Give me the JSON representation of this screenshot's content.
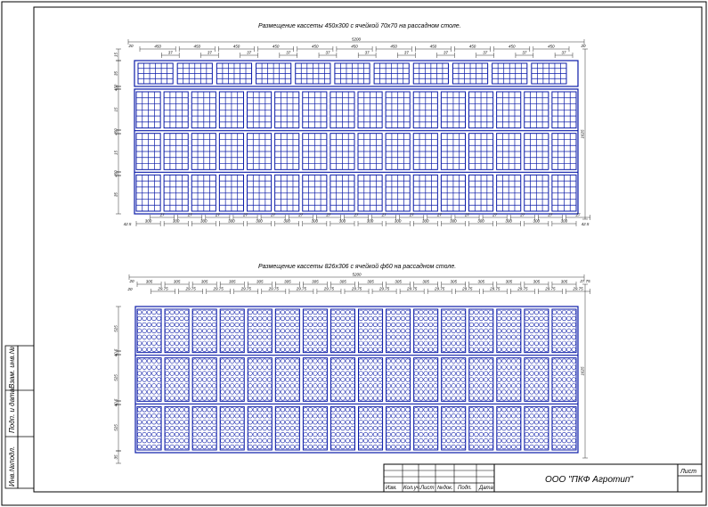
{
  "sheet": {
    "title1": "Размещение кассеты 450х300 с ячейкой 70х70 на рассадном столе.",
    "title2": "Размещение кассеты 826х306 с ячейкой ф60 на рассадном столе.",
    "company": "ООО \"ПКФ Агротип\""
  },
  "drawing1": {
    "overall_width": "5200",
    "overall_height": "1625",
    "side_margin_top": "20",
    "side_margin_bottom": "42.5",
    "cassette_width": "450",
    "cassette_height": "300",
    "spacing_top": "37",
    "spacing_bottom": "27",
    "row_height": "450",
    "row_gap": "15",
    "top_row_height": "35",
    "vertical_labels": [
      "15",
      "35",
      "450",
      "15",
      "450",
      "15",
      "450",
      "35"
    ],
    "top_row_count": 11,
    "body_cols": 16,
    "body_rows": 3
  },
  "drawing2": {
    "overall_width": "5200",
    "overall_height": "1625",
    "side_margin": "20",
    "side_margin_right": "27.75",
    "cassette_width": "305",
    "spacing": "29.75",
    "row_height": "525",
    "row_gap": "40.5",
    "margin_bottom": "35",
    "vertical_labels": [
      "525",
      "40.5",
      "525",
      "40.5",
      "525",
      "35"
    ],
    "cols": 16,
    "rows": 3
  },
  "stamp": {
    "headers": [
      "Изм.",
      "Кол.уч.",
      "Лист",
      "№док.",
      "Подп.",
      "Дата"
    ],
    "sheet_label": "Лист"
  },
  "margin_labels": [
    "Инв.№подл.",
    "Подп. и дата",
    "Взам. инв.№"
  ]
}
